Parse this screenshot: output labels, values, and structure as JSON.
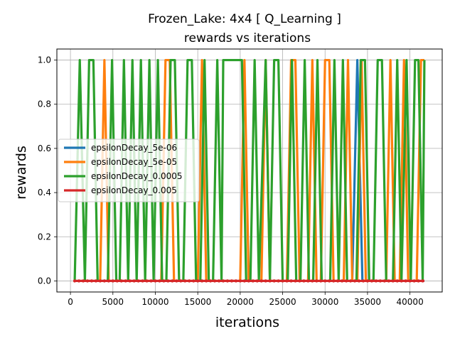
{
  "chart_data": {
    "type": "line",
    "title": "Frozen_Lake: 4x4 [ Q_Learning ]",
    "subtitle": "rewards vs iterations",
    "xlabel": "iterations",
    "ylabel": "rewards",
    "xlim": [
      -1600,
      43800
    ],
    "ylim": [
      -0.05,
      1.05
    ],
    "xticks": [
      0,
      5000,
      10000,
      15000,
      20000,
      25000,
      30000,
      35000,
      40000
    ],
    "yticks": [
      0.0,
      0.2,
      0.4,
      0.6,
      0.8,
      1.0
    ],
    "xtick_labels": [
      "0",
      "5000",
      "10000",
      "15000",
      "20000",
      "25000",
      "30000",
      "35000",
      "40000"
    ],
    "ytick_labels": [
      "0.0",
      "0.2",
      "0.4",
      "0.6",
      "0.8",
      "1.0"
    ],
    "grid": true,
    "legend_position": "center-left",
    "series": [
      {
        "name": "epsilonDecay_5e-06",
        "color": "#1f77b4",
        "points": [
          [
            500,
            0
          ],
          [
            33200,
            0
          ],
          [
            33800,
            1
          ],
          [
            34400,
            0
          ],
          [
            41700,
            0
          ]
        ]
      },
      {
        "name": "epsilonDecay_5e-05",
        "color": "#ff7f0e",
        "points": [
          [
            500,
            0
          ],
          [
            3500,
            0
          ],
          [
            4000,
            1
          ],
          [
            4500,
            0
          ],
          [
            10700,
            0
          ],
          [
            11200,
            1
          ],
          [
            11700,
            1
          ],
          [
            12200,
            0
          ],
          [
            15000,
            0
          ],
          [
            15500,
            1
          ],
          [
            16000,
            0
          ],
          [
            20000,
            0
          ],
          [
            20500,
            1
          ],
          [
            21000,
            0
          ],
          [
            22500,
            0
          ],
          [
            23000,
            1
          ],
          [
            23500,
            0
          ],
          [
            25500,
            0
          ],
          [
            26000,
            1
          ],
          [
            26500,
            1
          ],
          [
            27000,
            0
          ],
          [
            28000,
            0
          ],
          [
            28500,
            1
          ],
          [
            29000,
            0
          ],
          [
            29500,
            0
          ],
          [
            30000,
            1
          ],
          [
            30500,
            1
          ],
          [
            31000,
            0
          ],
          [
            32200,
            0
          ],
          [
            32700,
            1
          ],
          [
            33200,
            0
          ],
          [
            33800,
            0
          ],
          [
            34300,
            1
          ],
          [
            34800,
            0
          ],
          [
            37200,
            0
          ],
          [
            37700,
            1
          ],
          [
            38200,
            0
          ],
          [
            38800,
            0
          ],
          [
            39300,
            1
          ],
          [
            39800,
            0
          ],
          [
            40800,
            0
          ],
          [
            41300,
            1
          ],
          [
            41700,
            1
          ]
        ]
      },
      {
        "name": "epsilonDecay_0.0005",
        "color": "#2ca02c",
        "points": [
          [
            500,
            0
          ],
          [
            1100,
            1
          ],
          [
            1700,
            0
          ],
          [
            2200,
            1
          ],
          [
            2700,
            1
          ],
          [
            3200,
            0
          ],
          [
            4400,
            0
          ],
          [
            4900,
            1
          ],
          [
            5400,
            0
          ],
          [
            5800,
            0
          ],
          [
            6300,
            1
          ],
          [
            6800,
            0
          ],
          [
            7300,
            1
          ],
          [
            7800,
            0
          ],
          [
            8300,
            1
          ],
          [
            8800,
            0
          ],
          [
            9300,
            1
          ],
          [
            9800,
            0
          ],
          [
            10300,
            1
          ],
          [
            10800,
            0
          ],
          [
            11300,
            0
          ],
          [
            11800,
            1
          ],
          [
            12300,
            1
          ],
          [
            12800,
            0
          ],
          [
            13300,
            0
          ],
          [
            13800,
            1
          ],
          [
            14300,
            1
          ],
          [
            14800,
            0
          ],
          [
            15300,
            0
          ],
          [
            15800,
            1
          ],
          [
            16300,
            0
          ],
          [
            16800,
            0
          ],
          [
            17300,
            1
          ],
          [
            17800,
            0
          ],
          [
            18000,
            1
          ],
          [
            20200,
            1
          ],
          [
            20700,
            0
          ],
          [
            21200,
            0
          ],
          [
            21700,
            1
          ],
          [
            22200,
            0
          ],
          [
            23000,
            1
          ],
          [
            23500,
            0
          ],
          [
            24000,
            1
          ],
          [
            24500,
            1
          ],
          [
            25000,
            0
          ],
          [
            25600,
            0
          ],
          [
            26100,
            1
          ],
          [
            26600,
            0
          ],
          [
            27100,
            0
          ],
          [
            27600,
            1
          ],
          [
            28100,
            0
          ],
          [
            28600,
            0
          ],
          [
            29100,
            1
          ],
          [
            29600,
            0
          ],
          [
            30600,
            0
          ],
          [
            31100,
            1
          ],
          [
            31600,
            0
          ],
          [
            32100,
            1
          ],
          [
            32600,
            0
          ],
          [
            33700,
            0
          ],
          [
            34200,
            1
          ],
          [
            34700,
            1
          ],
          [
            35200,
            0
          ],
          [
            35700,
            0
          ],
          [
            36200,
            1
          ],
          [
            36700,
            1
          ],
          [
            37200,
            0
          ],
          [
            38000,
            0
          ],
          [
            38500,
            1
          ],
          [
            39000,
            0
          ],
          [
            39600,
            1
          ],
          [
            40100,
            0
          ],
          [
            40600,
            1
          ],
          [
            41000,
            1
          ],
          [
            41500,
            0
          ],
          [
            41700,
            1
          ]
        ]
      },
      {
        "name": "epsilonDecay_0.005",
        "color": "#d62728",
        "points": [
          [
            500,
            0
          ],
          [
            41700,
            0
          ]
        ],
        "markers": true
      }
    ]
  }
}
